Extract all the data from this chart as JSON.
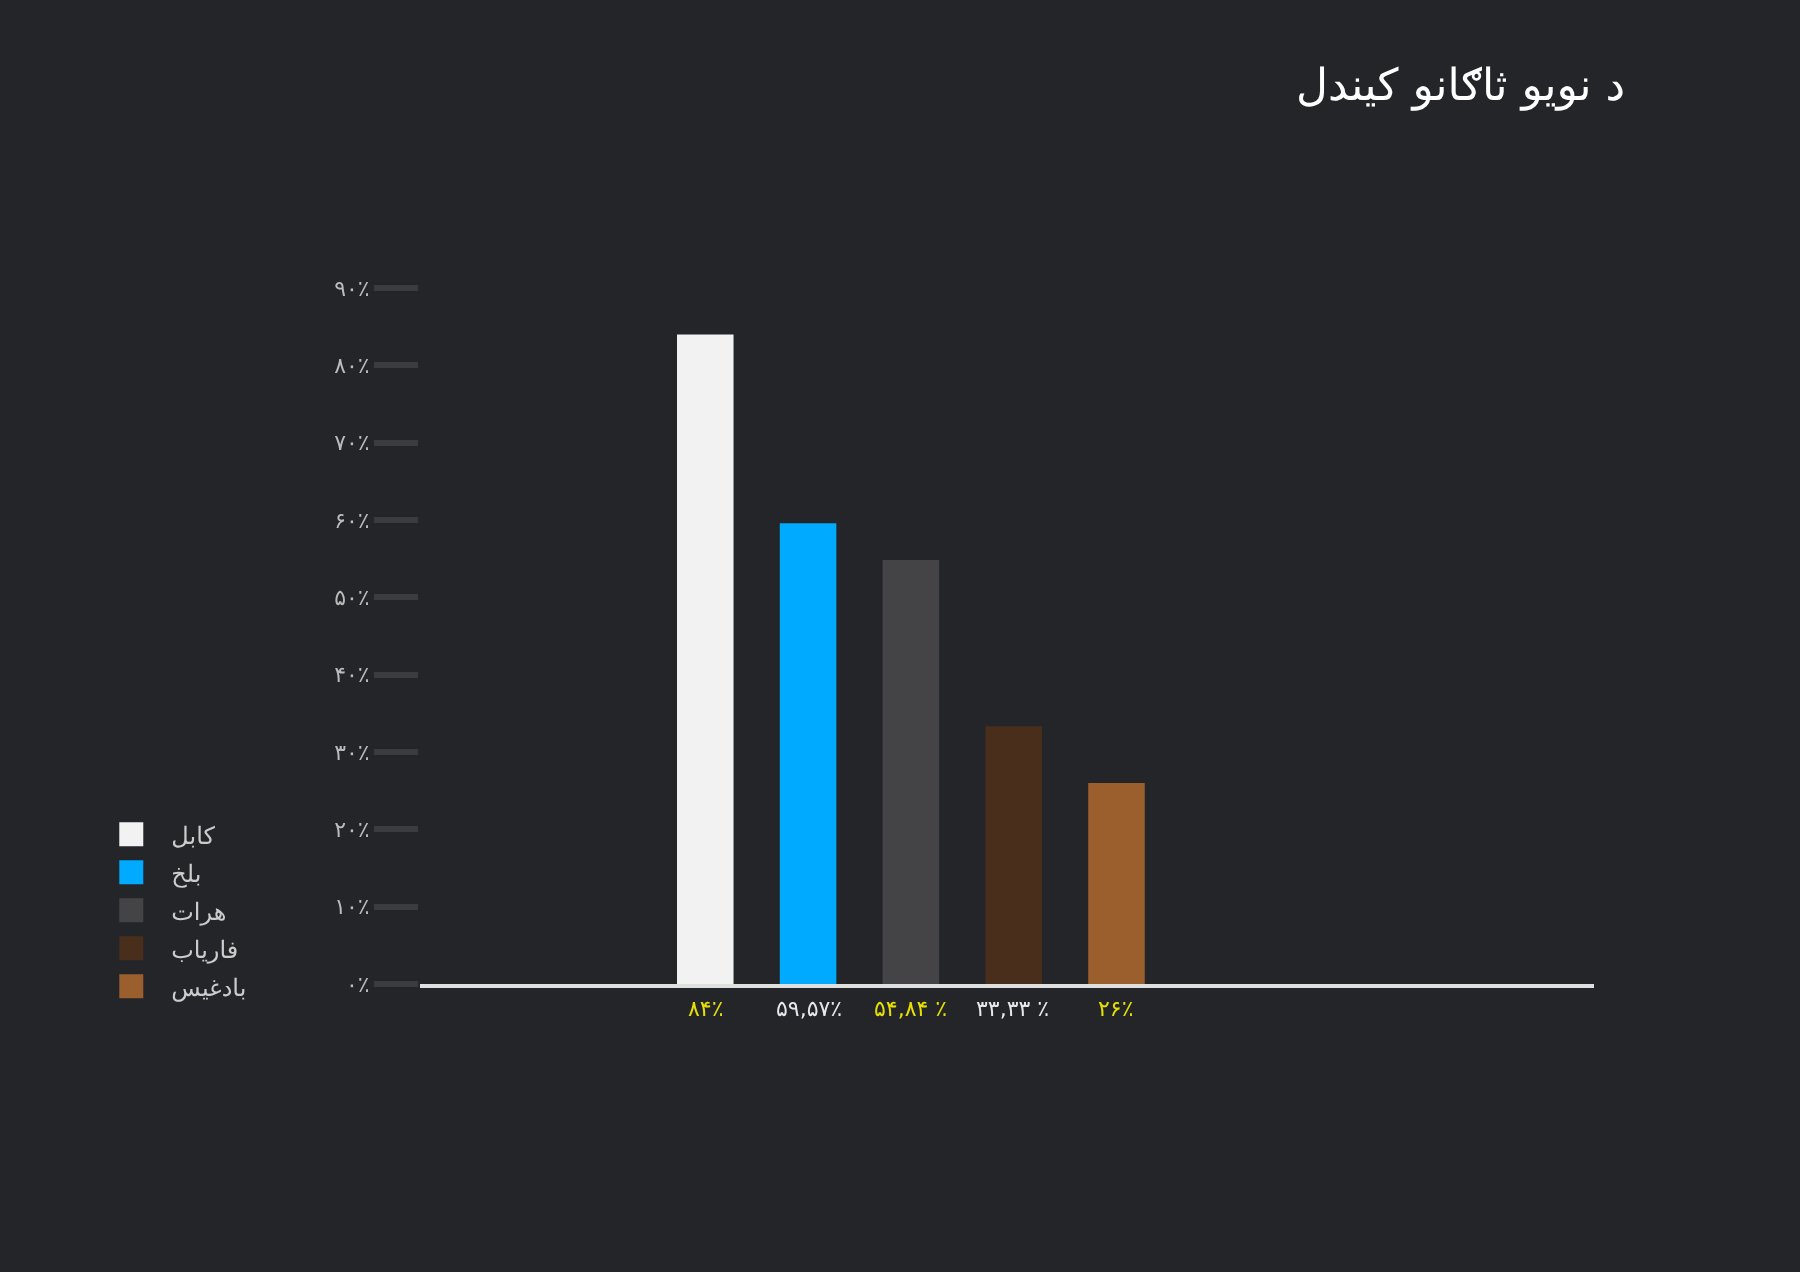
{
  "chart_data": {
    "type": "bar",
    "title": "د نویو ثاګانو کیندل",
    "categories": [
      null
    ],
    "series": [
      {
        "name": "کابل",
        "color": "#f2f2f2",
        "values": [
          84
        ],
        "value_labels": [
          "۸۴٪"
        ]
      },
      {
        "name": "بلخ",
        "color": "#00aaff",
        "values": [
          59.57
        ],
        "value_labels": [
          "۵۹,۵۷٪"
        ]
      },
      {
        "name": "هرات",
        "color": "#444446",
        "values": [
          54.84
        ],
        "value_labels": [
          "۵۴,۸۴ ٪"
        ]
      },
      {
        "name": "فاریاب",
        "color": "#4a2e1c",
        "values": [
          33.33
        ],
        "value_labels": [
          "۳۳,۳۳ ٪"
        ]
      },
      {
        "name": "بادغیس",
        "color": "#9a5f2c",
        "values": [
          26
        ],
        "value_labels": [
          "۲۶٪"
        ]
      }
    ],
    "ylim": [
      0,
      90
    ],
    "yticks": [
      {
        "value": 0,
        "label": "۰٪"
      },
      {
        "value": 10,
        "label": "۱۰٪"
      },
      {
        "value": 20,
        "label": "۲۰٪"
      },
      {
        "value": 30,
        "label": "۳۰٪"
      },
      {
        "value": 40,
        "label": "۴۰٪"
      },
      {
        "value": 50,
        "label": "۵۰٪"
      },
      {
        "value": 60,
        "label": "۶۰٪"
      },
      {
        "value": 70,
        "label": "۷۰٪"
      },
      {
        "value": 80,
        "label": "۸۰٪"
      },
      {
        "value": 90,
        "label": "۹۰٪"
      }
    ],
    "legend": "left"
  }
}
